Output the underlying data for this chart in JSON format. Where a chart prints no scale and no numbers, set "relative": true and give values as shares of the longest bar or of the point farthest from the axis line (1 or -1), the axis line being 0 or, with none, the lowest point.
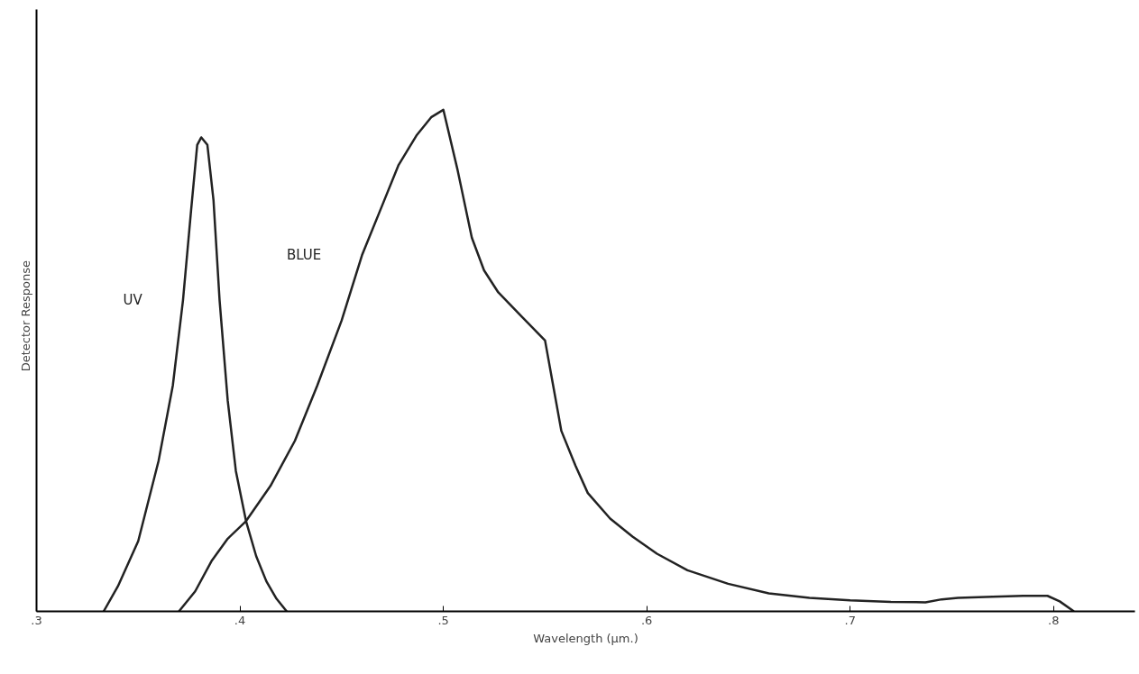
{
  "chart_data": {
    "type": "line",
    "relative": true,
    "xlabel": "Wavelength (µm.)",
    "ylabel": "Detector    Response",
    "xlim": [
      0.3,
      0.84
    ],
    "xticks": [
      {
        "value": 0.3,
        "label": ".3"
      },
      {
        "value": 0.4,
        "label": ".4"
      },
      {
        "value": 0.5,
        "label": ".5"
      },
      {
        "value": 0.6,
        "label": ".6"
      },
      {
        "value": 0.7,
        "label": ".7"
      },
      {
        "value": 0.8,
        "label": ".8"
      }
    ],
    "grid": false,
    "legend": false,
    "marker": "none",
    "line_style": "solid",
    "series": [
      {
        "name": "UV",
        "color": "#222222",
        "x": [
          0.333,
          0.34,
          0.35,
          0.36,
          0.367,
          0.372,
          0.376,
          0.379,
          0.381,
          0.384,
          0.387,
          0.39,
          0.394,
          0.398,
          0.403,
          0.408,
          0.413,
          0.418,
          0.423
        ],
        "values": [
          0,
          0.05,
          0.14,
          0.3,
          0.45,
          0.62,
          0.8,
          0.93,
          0.945,
          0.93,
          0.82,
          0.62,
          0.42,
          0.28,
          0.18,
          0.11,
          0.06,
          0.025,
          0
        ]
      },
      {
        "name": "BLUE",
        "color": "#222222",
        "x": [
          0.37,
          0.378,
          0.386,
          0.394,
          0.403,
          0.415,
          0.427,
          0.438,
          0.45,
          0.46,
          0.47,
          0.478,
          0.487,
          0.494,
          0.5,
          0.507,
          0.514,
          0.52,
          0.527,
          0.538,
          0.55,
          0.554,
          0.558,
          0.565,
          0.571,
          0.582,
          0.593,
          0.605,
          0.62,
          0.64,
          0.66,
          0.68,
          0.7,
          0.72,
          0.737,
          0.745,
          0.753,
          0.77,
          0.785,
          0.797,
          0.803,
          0.81
        ],
        "values": [
          0,
          0.04,
          0.1,
          0.145,
          0.18,
          0.25,
          0.34,
          0.45,
          0.58,
          0.71,
          0.81,
          0.89,
          0.95,
          0.985,
          1,
          0.88,
          0.745,
          0.68,
          0.636,
          0.59,
          0.54,
          0.45,
          0.36,
          0.29,
          0.236,
          0.185,
          0.149,
          0.115,
          0.082,
          0.055,
          0.036,
          0.027,
          0.022,
          0.019,
          0.018,
          0.024,
          0.027,
          0.029,
          0.031,
          0.031,
          0.02,
          0
        ]
      }
    ]
  }
}
